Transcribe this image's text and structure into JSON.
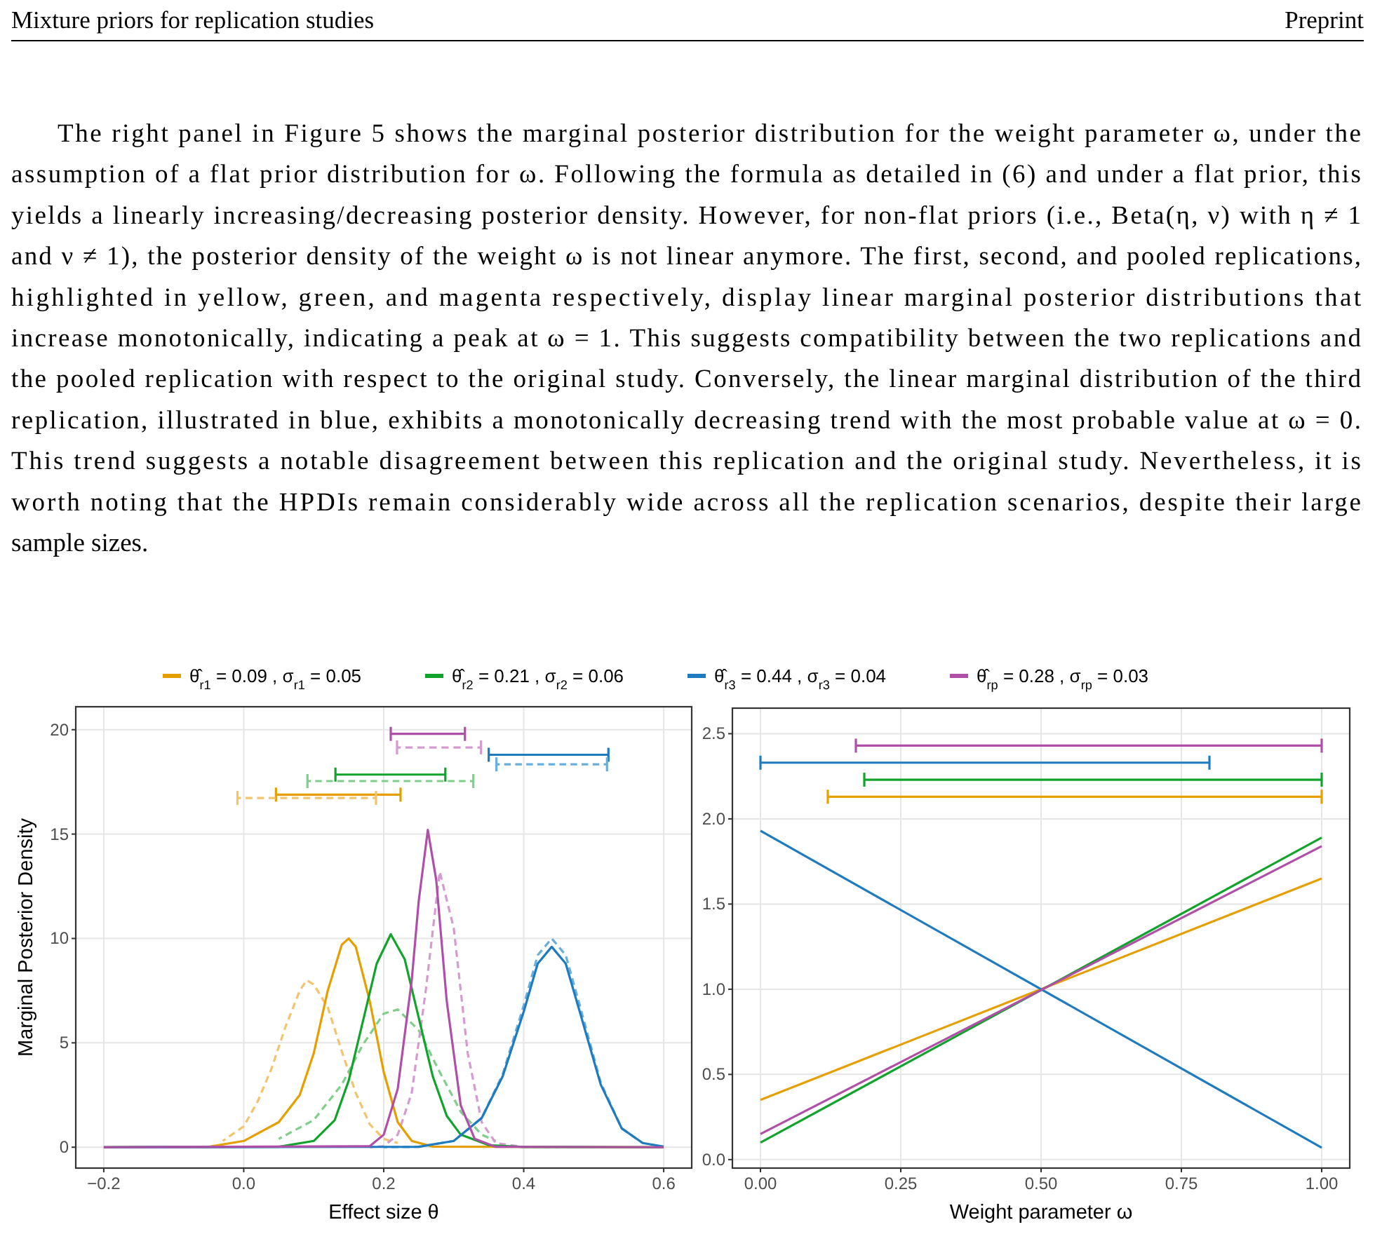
{
  "chart_data": [
    {
      "type": "line",
      "xlabel": "Effect size θ",
      "ylabel": "Marginal Posterior Density",
      "xlim": [
        -0.24,
        0.64
      ],
      "ylim": [
        -1,
        21.1
      ],
      "xticks": [
        {
          "value": -0.2,
          "label": "−0.2"
        },
        {
          "value": 0,
          "label": "0.0"
        },
        {
          "value": 0.2,
          "label": "0.2"
        },
        {
          "value": 0.4,
          "label": "0.4"
        },
        {
          "value": 0.6,
          "label": "0.6"
        }
      ],
      "yticks": [
        0,
        5,
        10,
        15,
        20
      ],
      "grid": true,
      "legend": "top",
      "annotations": [
        "Mixture priors for replication studies",
        "Preprint",
        "The right panel in Figure 5 shows the marginal posterior distribution for the weight parameter ω, under the",
        "assumption of a flat prior distribution for ω. Following the formula as detailed in (6) and under a flat prior, this",
        "yields a linearly increasing/decreasing posterior density. However, for non-flat priors (i.e., Beta(η, ν) with η ≠ 1",
        "and ν ≠ 1), the posterior density of the weight ω is not linear anymore. The first, second, and pooled replications,",
        "highlighted in yellow, green, and magenta respectively, display linear marginal posterior distributions that",
        "increase monotonically, indicating a peak at ω = 1. This suggests compatibility between the two replications and",
        "the pooled replication with respect to the original study. Conversely, the linear marginal distribution of the third",
        "replication, illustrated in blue, exhibits a monotonically decreasing trend with the most probable value at ω = 0.",
        "This trend suggests a notable disagreement between this replication and the original study. Nevertheless, it is",
        "worth noting that the HPDIs remain considerably wide across all the replication scenarios, despite their large",
        "sample sizes."
      ],
      "series": [
        {
          "color": "#f3c46e",
          "line_style": "dashed",
          "x": [
            -0.03,
            0,
            0.02,
            0.04,
            0.06,
            0.08,
            0.09,
            0.1,
            0.12,
            0.14,
            0.16,
            0.18,
            0.2,
            0.22
          ],
          "values": [
            0.3,
            1,
            2.2,
            3.8,
            5.8,
            7.5,
            8,
            7.8,
            6.7,
            4.6,
            2.6,
            1.1,
            0.4,
            0.2
          ]
        },
        {
          "color": "#7fcf8a",
          "line_style": "dashed",
          "x": [
            0.05,
            0.1,
            0.14,
            0.17,
            0.2,
            0.22,
            0.25,
            0.28,
            0.31,
            0.34,
            0.36
          ],
          "values": [
            0.4,
            1.3,
            3,
            4.9,
            6.4,
            6.6,
            5.6,
            3.6,
            1.7,
            0.6,
            0.3
          ]
        },
        {
          "color": "#d59bd0",
          "line_style": "dashed",
          "x": [
            0.18,
            0.2,
            0.22,
            0.24,
            0.26,
            0.28,
            0.3,
            0.32,
            0.34,
            0.36,
            0.4,
            0.45
          ],
          "values": [
            0,
            0.05,
            0.6,
            2.6,
            7.5,
            13.2,
            10.5,
            4.5,
            1.2,
            0.2,
            0.01,
            0
          ]
        },
        {
          "color": "#6aaedb",
          "line_style": "dashed",
          "x": [
            0.2,
            0.25,
            0.3,
            0.34,
            0.37,
            0.4,
            0.42,
            0.44,
            0.46,
            0.48,
            0.51,
            0.54,
            0.57
          ],
          "values": [
            0,
            0.02,
            0.3,
            1.4,
            3.5,
            6.8,
            9.2,
            10,
            9.2,
            6.8,
            3.1,
            0.9,
            0.2
          ]
        },
        {
          "name": "θ̂$_{r1}$ = 0.09 ,  σ$_{r1}$ = 0.05",
          "color": "#e69f00",
          "x": [
            -0.2,
            -0.05,
            0,
            0.05,
            0.08,
            0.1,
            0.12,
            0.14,
            0.15,
            0.16,
            0.18,
            0.2,
            0.22,
            0.24,
            0.27,
            0.6
          ],
          "values": [
            0,
            0.02,
            0.3,
            1.2,
            2.5,
            4.5,
            7.5,
            9.7,
            10,
            9.6,
            7,
            3.6,
            1.2,
            0.3,
            0.03,
            0
          ]
        },
        {
          "name": "θ̂$_{r2}$ = 0.21 ,  σ$_{r2}$ = 0.06",
          "color": "#12a32c",
          "x": [
            -0.2,
            0.05,
            0.1,
            0.13,
            0.15,
            0.17,
            0.19,
            0.21,
            0.23,
            0.25,
            0.27,
            0.29,
            0.31,
            0.35,
            0.4,
            0.6
          ],
          "values": [
            0,
            0.02,
            0.3,
            1.3,
            3.2,
            6,
            8.8,
            10.2,
            9,
            6.2,
            3.4,
            1.5,
            0.6,
            0.1,
            0.01,
            0
          ]
        },
        {
          "name": "θ̂$_{r3}$ = 0.44 ,  σ$_{r3}$ = 0.04",
          "color": "#1f7bbf",
          "x": [
            -0.2,
            0.25,
            0.3,
            0.34,
            0.37,
            0.4,
            0.42,
            0.44,
            0.46,
            0.48,
            0.51,
            0.54,
            0.57,
            0.6
          ],
          "values": [
            0,
            0.02,
            0.3,
            1.4,
            3.4,
            6.5,
            8.8,
            9.6,
            8.8,
            6.5,
            3,
            0.9,
            0.2,
            0.03
          ]
        },
        {
          "name": "θ̂$_{rp}$ = 0.28 ,  σ$_{rp}$ = 0.03",
          "color": "#b04fa8",
          "x": [
            -0.2,
            0.18,
            0.2,
            0.22,
            0.24,
            0.25,
            0.263,
            0.275,
            0.29,
            0.31,
            0.33,
            0.36,
            0.6
          ],
          "values": [
            0,
            0.05,
            0.6,
            2.8,
            8,
            11.8,
            15.2,
            12.8,
            7,
            2,
            0.4,
            0.02,
            0
          ]
        },
        {
          "color": "#b04fa8",
          "x": [
            0.21,
            0.316
          ],
          "values": [
            19.8,
            19.8
          ]
        },
        {
          "line_style": "dashed",
          "color": "#d59bd0",
          "x": [
            0.219,
            0.339
          ],
          "values": [
            19.15,
            19.15
          ]
        },
        {
          "color": "#1f7bbf",
          "x": [
            0.35,
            0.521
          ],
          "values": [
            18.8,
            18.8
          ]
        },
        {
          "line_style": "dashed",
          "color": "#6aaedb",
          "x": [
            0.361,
            0.519
          ],
          "values": [
            18.34,
            18.34
          ]
        },
        {
          "color": "#12a32c",
          "x": [
            0.131,
            0.288
          ],
          "values": [
            17.85,
            17.85
          ]
        },
        {
          "line_style": "dashed",
          "color": "#7fcf8a",
          "x": [
            0.091,
            0.328
          ],
          "values": [
            17.54,
            17.54
          ]
        },
        {
          "color": "#e69f00",
          "x": [
            0.046,
            0.224
          ],
          "values": [
            16.89,
            16.89
          ]
        },
        {
          "line_style": "dashed",
          "color": "#f3c46e",
          "x": [
            -0.009,
            0.189
          ],
          "values": [
            16.73,
            16.73
          ]
        }
      ]
    },
    {
      "type": "line",
      "xlabel": "Weight parameter ω",
      "xlim": [
        -0.05,
        1.05
      ],
      "ylim": [
        -0.05,
        2.65
      ],
      "xticks": [
        {
          "value": 0,
          "label": "0.00"
        },
        {
          "value": 0.25,
          "label": "0.25"
        },
        {
          "value": 0.5,
          "label": "0.50"
        },
        {
          "value": 0.75,
          "label": "0.75"
        },
        {
          "value": 1,
          "label": "1.00"
        }
      ],
      "yticks": [
        {
          "value": 0,
          "label": "0.0"
        },
        {
          "value": 0.5,
          "label": "0.5"
        },
        {
          "value": 1,
          "label": "1.0"
        },
        {
          "value": 1.5,
          "label": "1.5"
        },
        {
          "value": 2,
          "label": "2.0"
        },
        {
          "value": 2.5,
          "label": "2.5"
        }
      ],
      "grid": true,
      "series": [
        {
          "color": "#e69f00",
          "x": [
            0,
            1
          ],
          "values": [
            0.35,
            1.65
          ]
        },
        {
          "color": "#12a32c",
          "x": [
            0,
            1
          ],
          "values": [
            0.1,
            1.89
          ]
        },
        {
          "color": "#1f7bbf",
          "x": [
            0,
            1
          ],
          "values": [
            1.93,
            0.07
          ]
        },
        {
          "color": "#b04fa8",
          "x": [
            0,
            1
          ],
          "values": [
            0.15,
            1.84
          ]
        },
        {
          "color": "#b04fa8",
          "x": [
            0.17,
            1
          ],
          "values": [
            2.43,
            2.43
          ]
        },
        {
          "color": "#1f7bbf",
          "x": [
            0,
            0.8
          ],
          "values": [
            2.33,
            2.33
          ]
        },
        {
          "color": "#12a32c",
          "x": [
            0.185,
            1
          ],
          "values": [
            2.23,
            2.23
          ]
        },
        {
          "color": "#e69f00",
          "x": [
            0.12,
            1
          ],
          "values": [
            2.13,
            2.13
          ]
        }
      ]
    }
  ]
}
